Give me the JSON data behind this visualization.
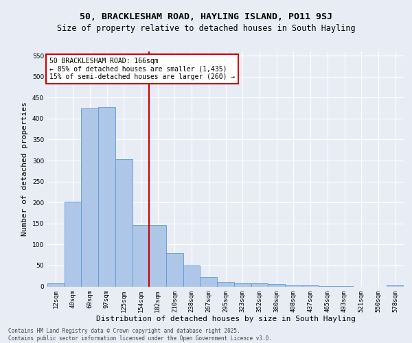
{
  "title_line1": "50, BRACKLESHAM ROAD, HAYLING ISLAND, PO11 9SJ",
  "title_line2": "Size of property relative to detached houses in South Hayling",
  "xlabel": "Distribution of detached houses by size in South Hayling",
  "ylabel": "Number of detached properties",
  "categories": [
    "12sqm",
    "40sqm",
    "69sqm",
    "97sqm",
    "125sqm",
    "154sqm",
    "182sqm",
    "210sqm",
    "238sqm",
    "267sqm",
    "295sqm",
    "323sqm",
    "352sqm",
    "380sqm",
    "408sqm",
    "437sqm",
    "465sqm",
    "493sqm",
    "521sqm",
    "550sqm",
    "578sqm"
  ],
  "values": [
    7,
    202,
    425,
    427,
    303,
    147,
    147,
    80,
    50,
    22,
    11,
    8,
    7,
    5,
    3,
    2,
    1,
    1,
    0,
    0,
    3
  ],
  "bar_color": "#aec6e8",
  "bar_edge_color": "#5b9bd5",
  "vline_index": 6,
  "vline_color": "#cc0000",
  "annotation_text": "50 BRACKLESHAM ROAD: 166sqm\n← 85% of detached houses are smaller (1,435)\n15% of semi-detached houses are larger (260) →",
  "annotation_box_color": "#ffffff",
  "annotation_box_edge_color": "#cc0000",
  "footer_text": "Contains HM Land Registry data © Crown copyright and database right 2025.\nContains public sector information licensed under the Open Government Licence v3.0.",
  "ylim": [
    0,
    560
  ],
  "yticks": [
    0,
    50,
    100,
    150,
    200,
    250,
    300,
    350,
    400,
    450,
    500,
    550
  ],
  "bg_color": "#e8ecf5",
  "plot_bg_color": "#e8ecf5",
  "grid_color": "#ffffff",
  "title_fontsize": 9.5,
  "subtitle_fontsize": 8.5,
  "tick_fontsize": 6.5,
  "ylabel_fontsize": 8,
  "xlabel_fontsize": 8,
  "ann_fontsize": 7,
  "footer_fontsize": 5.5
}
